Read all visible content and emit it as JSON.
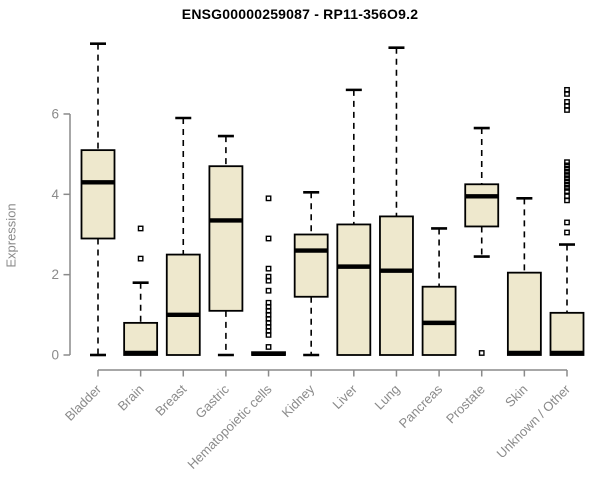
{
  "title": "ENSG00000259087 - RP11-356O9.2",
  "chart_data": {
    "type": "box",
    "title": "ENSG00000259087 - RP11-356O9.2",
    "xlabel": "",
    "ylabel": "Expression",
    "yticks": [
      0,
      2,
      4,
      6
    ],
    "ylim": [
      0,
      7.9
    ],
    "grid": false,
    "legend": "none",
    "categories": [
      "Bladder",
      "Brain",
      "Breast",
      "Gastric",
      "Hematopoietic cells",
      "Kidney",
      "Liver",
      "Lung",
      "Pancreas",
      "Prostate",
      "Skin",
      "Unknown / Other"
    ],
    "boxes": [
      {
        "category": "Bladder",
        "min": 0,
        "q1": 2.9,
        "median": 4.3,
        "q3": 5.1,
        "max": 7.75,
        "outliers": []
      },
      {
        "category": "Brain",
        "min": 0,
        "q1": 0,
        "median": 0.05,
        "q3": 0.8,
        "max": 1.8,
        "outliers": [
          3.15,
          2.4
        ]
      },
      {
        "category": "Breast",
        "min": 0,
        "q1": 0,
        "median": 1.0,
        "q3": 2.5,
        "max": 5.9,
        "outliers": []
      },
      {
        "category": "Gastric",
        "min": 0,
        "q1": 1.1,
        "median": 3.35,
        "q3": 4.7,
        "max": 5.45,
        "outliers": []
      },
      {
        "category": "Hematopoietic cells",
        "min": 0,
        "q1": 0,
        "median": 0.03,
        "q3": 0.07,
        "max": 0.07,
        "outliers": [
          3.9,
          2.9,
          2.15,
          1.95,
          1.85,
          1.6,
          1.3,
          1.2,
          1.1,
          1.0,
          0.9,
          0.8,
          0.7,
          0.6,
          0.5,
          0.2
        ]
      },
      {
        "category": "Kidney",
        "min": 0,
        "q1": 1.45,
        "median": 2.6,
        "q3": 3.0,
        "max": 4.05,
        "outliers": []
      },
      {
        "category": "Liver",
        "min": 0,
        "q1": 0,
        "median": 2.2,
        "q3": 3.25,
        "max": 6.6,
        "outliers": []
      },
      {
        "category": "Lung",
        "min": 0,
        "q1": 0,
        "median": 2.1,
        "q3": 3.45,
        "max": 7.65,
        "outliers": []
      },
      {
        "category": "Pancreas",
        "min": 0,
        "q1": 0,
        "median": 0.8,
        "q3": 1.7,
        "max": 3.15,
        "outliers": []
      },
      {
        "category": "Prostate",
        "min": 2.45,
        "q1": 3.2,
        "median": 3.95,
        "q3": 4.25,
        "max": 5.65,
        "outliers": [
          0.05
        ]
      },
      {
        "category": "Skin",
        "min": 0,
        "q1": 0,
        "median": 0.05,
        "q3": 2.05,
        "max": 3.9,
        "outliers": []
      },
      {
        "category": "Unknown / Other",
        "min": 0,
        "q1": 0,
        "median": 0.05,
        "q3": 1.05,
        "max": 2.75,
        "outliers": [
          6.6,
          6.5,
          6.3,
          6.2,
          6.1,
          4.8,
          4.72,
          4.64,
          4.56,
          4.48,
          4.4,
          4.32,
          4.24,
          4.16,
          4.08,
          3.95,
          3.85,
          3.3,
          3.05
        ]
      }
    ],
    "colors": {
      "box_fill": "#EEE8CD",
      "box_border": "#000000",
      "median": "#000000",
      "whisker": "#000000",
      "outlier": "#000000",
      "axis": "#8a8a8a",
      "tick_label": "#8a8a8a",
      "title": "#000000"
    }
  }
}
